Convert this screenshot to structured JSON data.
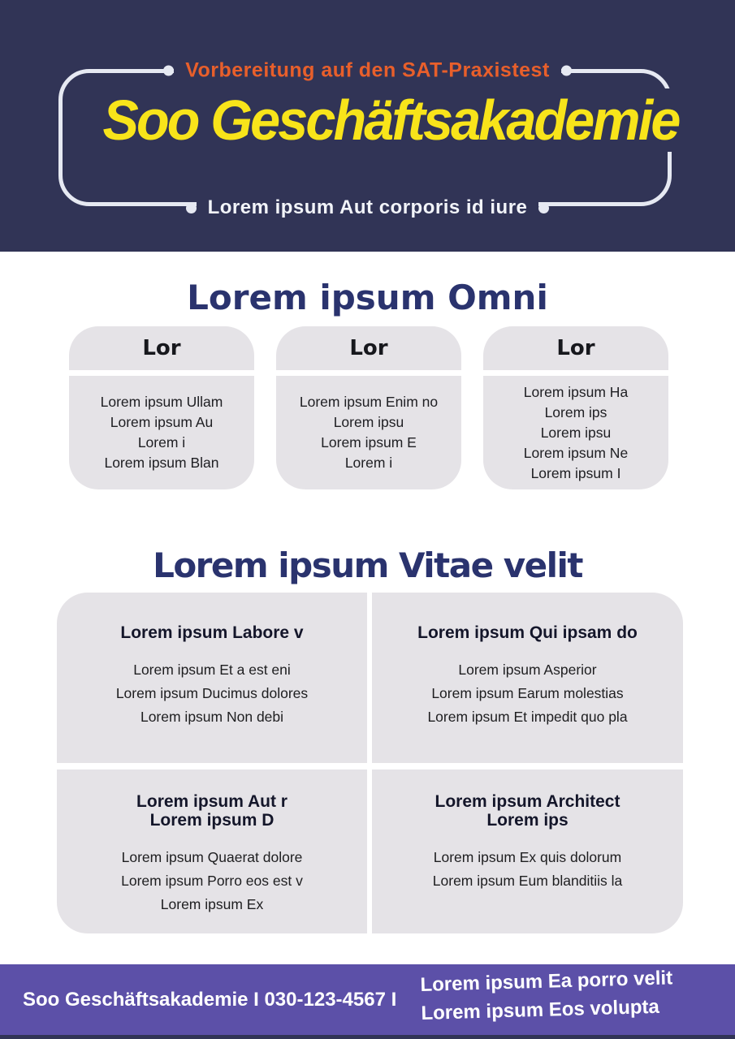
{
  "theme": {
    "hero_bg": "#313456",
    "frame_color": "#E6E9F2",
    "tagline_color": "#E85F2B",
    "title_color": "#F8E41A",
    "heading_color": "#2A336E",
    "card_bg": "#E5E3E7",
    "footer_bg": "#5C50A8",
    "footer_strip": "#313456"
  },
  "header": {
    "tagline": "Vorbereitung auf den SAT-Praxistest",
    "title": "Soo Geschäftsakademie",
    "subtitle": "Lorem ipsum Aut corporis id iure"
  },
  "section1": {
    "heading": "Lorem ipsum Omni",
    "cards": [
      {
        "header": "Lor",
        "lines": [
          "Lorem ipsum Ullam",
          "Lorem ipsum Au",
          "Lorem i",
          "Lorem ipsum Blan"
        ]
      },
      {
        "header": "Lor",
        "lines": [
          "Lorem ipsum Enim no",
          "Lorem ipsu",
          "Lorem ipsum E",
          "Lorem i"
        ]
      },
      {
        "header": "Lor",
        "lines": [
          "Lorem ipsum Ha",
          "Lorem ips",
          "Lorem ipsu",
          "Lorem ipsum Ne",
          "Lorem ipsum I"
        ]
      }
    ]
  },
  "section2": {
    "heading": "Lorem ipsum Vitae velit",
    "cells": [
      {
        "title_lines": [
          "Lorem ipsum Labore v"
        ],
        "lines": [
          "Lorem ipsum Et a est eni",
          "Lorem ipsum Ducimus dolores",
          "Lorem ipsum Non debi"
        ]
      },
      {
        "title_lines": [
          "Lorem ipsum Qui ipsam do"
        ],
        "lines": [
          "Lorem ipsum Asperior",
          "Lorem ipsum Earum molestias",
          "Lorem ipsum Et impedit quo pla"
        ]
      },
      {
        "title_lines": [
          "Lorem ipsum Aut r",
          "Lorem ipsum D"
        ],
        "lines": [
          "Lorem ipsum Quaerat dolore",
          "Lorem ipsum Porro eos est v",
          "Lorem ipsum Ex"
        ]
      },
      {
        "title_lines": [
          "Lorem ipsum Architect",
          "Lorem ips"
        ],
        "lines": [
          "Lorem ipsum Ex quis dolorum",
          "Lorem ipsum Eum blanditiis la"
        ]
      }
    ]
  },
  "footer": {
    "left_text": "Soo Geschäftsakademie I 030-123-4567 I",
    "right_lines": [
      "Lorem ipsum Ea porro velit",
      "Lorem ipsum Eos volupta"
    ]
  }
}
